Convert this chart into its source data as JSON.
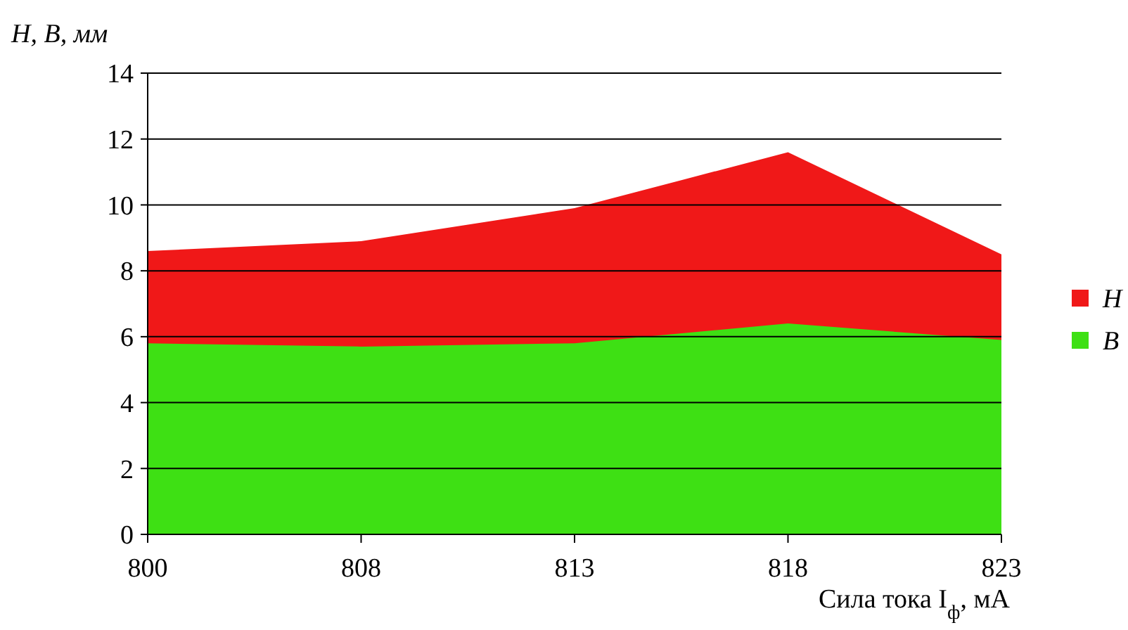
{
  "chart_data": {
    "type": "area",
    "xlabel": "Сила тока I$_{ф}$, мА",
    "ylabel": "H, B, мм",
    "categories": [
      "800",
      "808",
      "813",
      "818",
      "823"
    ],
    "series": [
      {
        "name": "H",
        "color": "#f01818",
        "values": [
          8.6,
          8.9,
          9.9,
          11.6,
          8.5
        ]
      },
      {
        "name": "B",
        "color": "#3ee014",
        "values": [
          5.8,
          5.7,
          5.8,
          6.4,
          5.9
        ]
      }
    ],
    "ylim": [
      0,
      14
    ],
    "yticks": [
      0,
      2,
      4,
      6,
      8,
      10,
      12,
      14
    ],
    "grid": "y",
    "legend": "right"
  }
}
